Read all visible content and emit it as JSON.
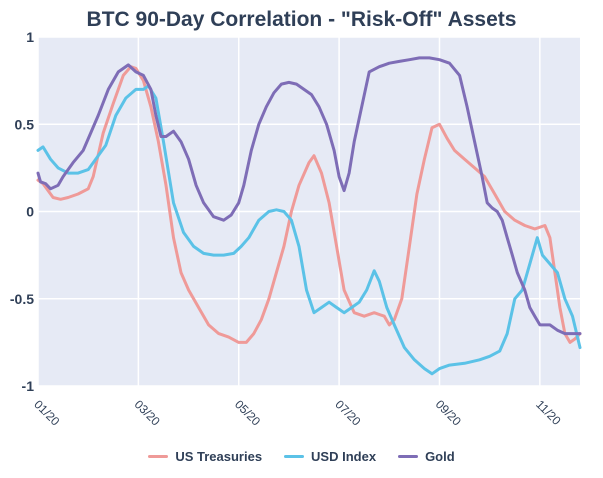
{
  "chart_data": {
    "type": "line",
    "title": "BTC 90-Day Correlation - \"Risk-Off\" Assets",
    "xlabel": "",
    "ylabel": "",
    "ylim": [
      -1,
      1
    ],
    "yticks": [
      "1",
      "0.5",
      "0",
      "-0.5",
      "-1"
    ],
    "xticks": [
      "01/20",
      "03/20",
      "05/20",
      "07/20",
      "09/20",
      "11/20"
    ],
    "xlim_months": [
      0,
      10.8
    ],
    "grid": true,
    "legend_position": "bottom",
    "series": [
      {
        "name": "US Treasuries",
        "color": "#ef9a98",
        "points": [
          [
            0,
            0.18
          ],
          [
            0.1,
            0.16
          ],
          [
            0.3,
            0.08
          ],
          [
            0.45,
            0.07
          ],
          [
            0.6,
            0.08
          ],
          [
            0.8,
            0.1
          ],
          [
            1,
            0.13
          ],
          [
            1.1,
            0.2
          ],
          [
            1.3,
            0.45
          ],
          [
            1.5,
            0.62
          ],
          [
            1.7,
            0.78
          ],
          [
            1.85,
            0.83
          ],
          [
            1.95,
            0.82
          ],
          [
            2.1,
            0.75
          ],
          [
            2.25,
            0.6
          ],
          [
            2.4,
            0.4
          ],
          [
            2.55,
            0.15
          ],
          [
            2.7,
            -0.15
          ],
          [
            2.85,
            -0.35
          ],
          [
            3,
            -0.45
          ],
          [
            3.2,
            -0.55
          ],
          [
            3.4,
            -0.65
          ],
          [
            3.6,
            -0.7
          ],
          [
            3.8,
            -0.72
          ],
          [
            4,
            -0.75
          ],
          [
            4.15,
            -0.75
          ],
          [
            4.3,
            -0.7
          ],
          [
            4.45,
            -0.62
          ],
          [
            4.6,
            -0.5
          ],
          [
            4.75,
            -0.35
          ],
          [
            4.9,
            -0.2
          ],
          [
            5.05,
            0
          ],
          [
            5.2,
            0.15
          ],
          [
            5.4,
            0.28
          ],
          [
            5.5,
            0.32
          ],
          [
            5.65,
            0.22
          ],
          [
            5.8,
            0.05
          ],
          [
            5.95,
            -0.2
          ],
          [
            6.1,
            -0.45
          ],
          [
            6.3,
            -0.58
          ],
          [
            6.5,
            -0.6
          ],
          [
            6.7,
            -0.58
          ],
          [
            6.9,
            -0.6
          ],
          [
            7,
            -0.65
          ],
          [
            7.1,
            -0.62
          ],
          [
            7.25,
            -0.5
          ],
          [
            7.4,
            -0.2
          ],
          [
            7.55,
            0.1
          ],
          [
            7.7,
            0.3
          ],
          [
            7.85,
            0.48
          ],
          [
            8,
            0.5
          ],
          [
            8.15,
            0.42
          ],
          [
            8.3,
            0.35
          ],
          [
            8.5,
            0.3
          ],
          [
            8.7,
            0.25
          ],
          [
            8.9,
            0.2
          ],
          [
            9.1,
            0.1
          ],
          [
            9.3,
            0
          ],
          [
            9.5,
            -0.05
          ],
          [
            9.7,
            -0.08
          ],
          [
            9.9,
            -0.1
          ],
          [
            10.1,
            -0.08
          ],
          [
            10.2,
            -0.15
          ],
          [
            10.3,
            -0.35
          ],
          [
            10.4,
            -0.55
          ],
          [
            10.5,
            -0.7
          ],
          [
            10.6,
            -0.75
          ],
          [
            10.7,
            -0.73
          ],
          [
            10.8,
            -0.7
          ]
        ]
      },
      {
        "name": "USD Index",
        "color": "#5bc2e7",
        "points": [
          [
            0,
            0.35
          ],
          [
            0.1,
            0.37
          ],
          [
            0.25,
            0.3
          ],
          [
            0.4,
            0.25
          ],
          [
            0.6,
            0.22
          ],
          [
            0.8,
            0.22
          ],
          [
            1,
            0.24
          ],
          [
            1.15,
            0.3
          ],
          [
            1.35,
            0.38
          ],
          [
            1.55,
            0.55
          ],
          [
            1.75,
            0.65
          ],
          [
            1.95,
            0.7
          ],
          [
            2.1,
            0.7
          ],
          [
            2.2,
            0.72
          ],
          [
            2.35,
            0.65
          ],
          [
            2.5,
            0.4
          ],
          [
            2.7,
            0.05
          ],
          [
            2.9,
            -0.12
          ],
          [
            3.1,
            -0.2
          ],
          [
            3.3,
            -0.24
          ],
          [
            3.5,
            -0.25
          ],
          [
            3.7,
            -0.25
          ],
          [
            3.9,
            -0.24
          ],
          [
            4.05,
            -0.2
          ],
          [
            4.2,
            -0.15
          ],
          [
            4.4,
            -0.05
          ],
          [
            4.6,
            0
          ],
          [
            4.75,
            0.01
          ],
          [
            4.9,
            0
          ],
          [
            5.05,
            -0.05
          ],
          [
            5.2,
            -0.2
          ],
          [
            5.35,
            -0.45
          ],
          [
            5.5,
            -0.58
          ],
          [
            5.65,
            -0.55
          ],
          [
            5.8,
            -0.52
          ],
          [
            5.95,
            -0.55
          ],
          [
            6.1,
            -0.58
          ],
          [
            6.25,
            -0.55
          ],
          [
            6.4,
            -0.52
          ],
          [
            6.55,
            -0.45
          ],
          [
            6.7,
            -0.34
          ],
          [
            6.8,
            -0.4
          ],
          [
            6.95,
            -0.55
          ],
          [
            7.1,
            -0.65
          ],
          [
            7.3,
            -0.78
          ],
          [
            7.5,
            -0.85
          ],
          [
            7.7,
            -0.9
          ],
          [
            7.85,
            -0.93
          ],
          [
            8,
            -0.9
          ],
          [
            8.2,
            -0.88
          ],
          [
            8.5,
            -0.87
          ],
          [
            8.8,
            -0.85
          ],
          [
            9,
            -0.83
          ],
          [
            9.2,
            -0.8
          ],
          [
            9.35,
            -0.7
          ],
          [
            9.5,
            -0.5
          ],
          [
            9.65,
            -0.45
          ],
          [
            9.8,
            -0.3
          ],
          [
            9.9,
            -0.2
          ],
          [
            9.95,
            -0.15
          ],
          [
            10.05,
            -0.25
          ],
          [
            10.2,
            -0.3
          ],
          [
            10.35,
            -0.35
          ],
          [
            10.5,
            -0.5
          ],
          [
            10.65,
            -0.6
          ],
          [
            10.8,
            -0.78
          ]
        ]
      },
      {
        "name": "Gold",
        "color": "#7e6db6",
        "points": [
          [
            0,
            0.22
          ],
          [
            0.05,
            0.17
          ],
          [
            0.15,
            0.16
          ],
          [
            0.25,
            0.13
          ],
          [
            0.4,
            0.15
          ],
          [
            0.5,
            0.2
          ],
          [
            0.7,
            0.28
          ],
          [
            0.9,
            0.35
          ],
          [
            1.05,
            0.45
          ],
          [
            1.2,
            0.55
          ],
          [
            1.4,
            0.7
          ],
          [
            1.6,
            0.8
          ],
          [
            1.8,
            0.84
          ],
          [
            1.95,
            0.8
          ],
          [
            2.1,
            0.78
          ],
          [
            2.25,
            0.7
          ],
          [
            2.35,
            0.55
          ],
          [
            2.45,
            0.43
          ],
          [
            2.55,
            0.43
          ],
          [
            2.7,
            0.46
          ],
          [
            2.85,
            0.4
          ],
          [
            3,
            0.3
          ],
          [
            3.15,
            0.15
          ],
          [
            3.3,
            0.05
          ],
          [
            3.5,
            -0.03
          ],
          [
            3.7,
            -0.05
          ],
          [
            3.85,
            -0.02
          ],
          [
            4,
            0.05
          ],
          [
            4.1,
            0.15
          ],
          [
            4.25,
            0.35
          ],
          [
            4.4,
            0.5
          ],
          [
            4.55,
            0.6
          ],
          [
            4.7,
            0.68
          ],
          [
            4.85,
            0.73
          ],
          [
            5,
            0.74
          ],
          [
            5.15,
            0.73
          ],
          [
            5.3,
            0.7
          ],
          [
            5.45,
            0.67
          ],
          [
            5.6,
            0.6
          ],
          [
            5.75,
            0.5
          ],
          [
            5.9,
            0.35
          ],
          [
            6,
            0.2
          ],
          [
            6.1,
            0.12
          ],
          [
            6.2,
            0.22
          ],
          [
            6.3,
            0.4
          ],
          [
            6.45,
            0.6
          ],
          [
            6.6,
            0.8
          ],
          [
            6.8,
            0.83
          ],
          [
            7,
            0.85
          ],
          [
            7.2,
            0.86
          ],
          [
            7.4,
            0.87
          ],
          [
            7.6,
            0.88
          ],
          [
            7.8,
            0.88
          ],
          [
            8,
            0.87
          ],
          [
            8.2,
            0.85
          ],
          [
            8.4,
            0.78
          ],
          [
            8.55,
            0.6
          ],
          [
            8.7,
            0.4
          ],
          [
            8.85,
            0.2
          ],
          [
            8.95,
            0.05
          ],
          [
            9.05,
            0.02
          ],
          [
            9.15,
            0
          ],
          [
            9.25,
            -0.05
          ],
          [
            9.35,
            -0.15
          ],
          [
            9.45,
            -0.25
          ],
          [
            9.55,
            -0.35
          ],
          [
            9.7,
            -0.45
          ],
          [
            9.8,
            -0.55
          ],
          [
            9.9,
            -0.6
          ],
          [
            10,
            -0.65
          ],
          [
            10.2,
            -0.65
          ],
          [
            10.35,
            -0.68
          ],
          [
            10.5,
            -0.7
          ],
          [
            10.8,
            -0.7
          ]
        ]
      }
    ]
  }
}
